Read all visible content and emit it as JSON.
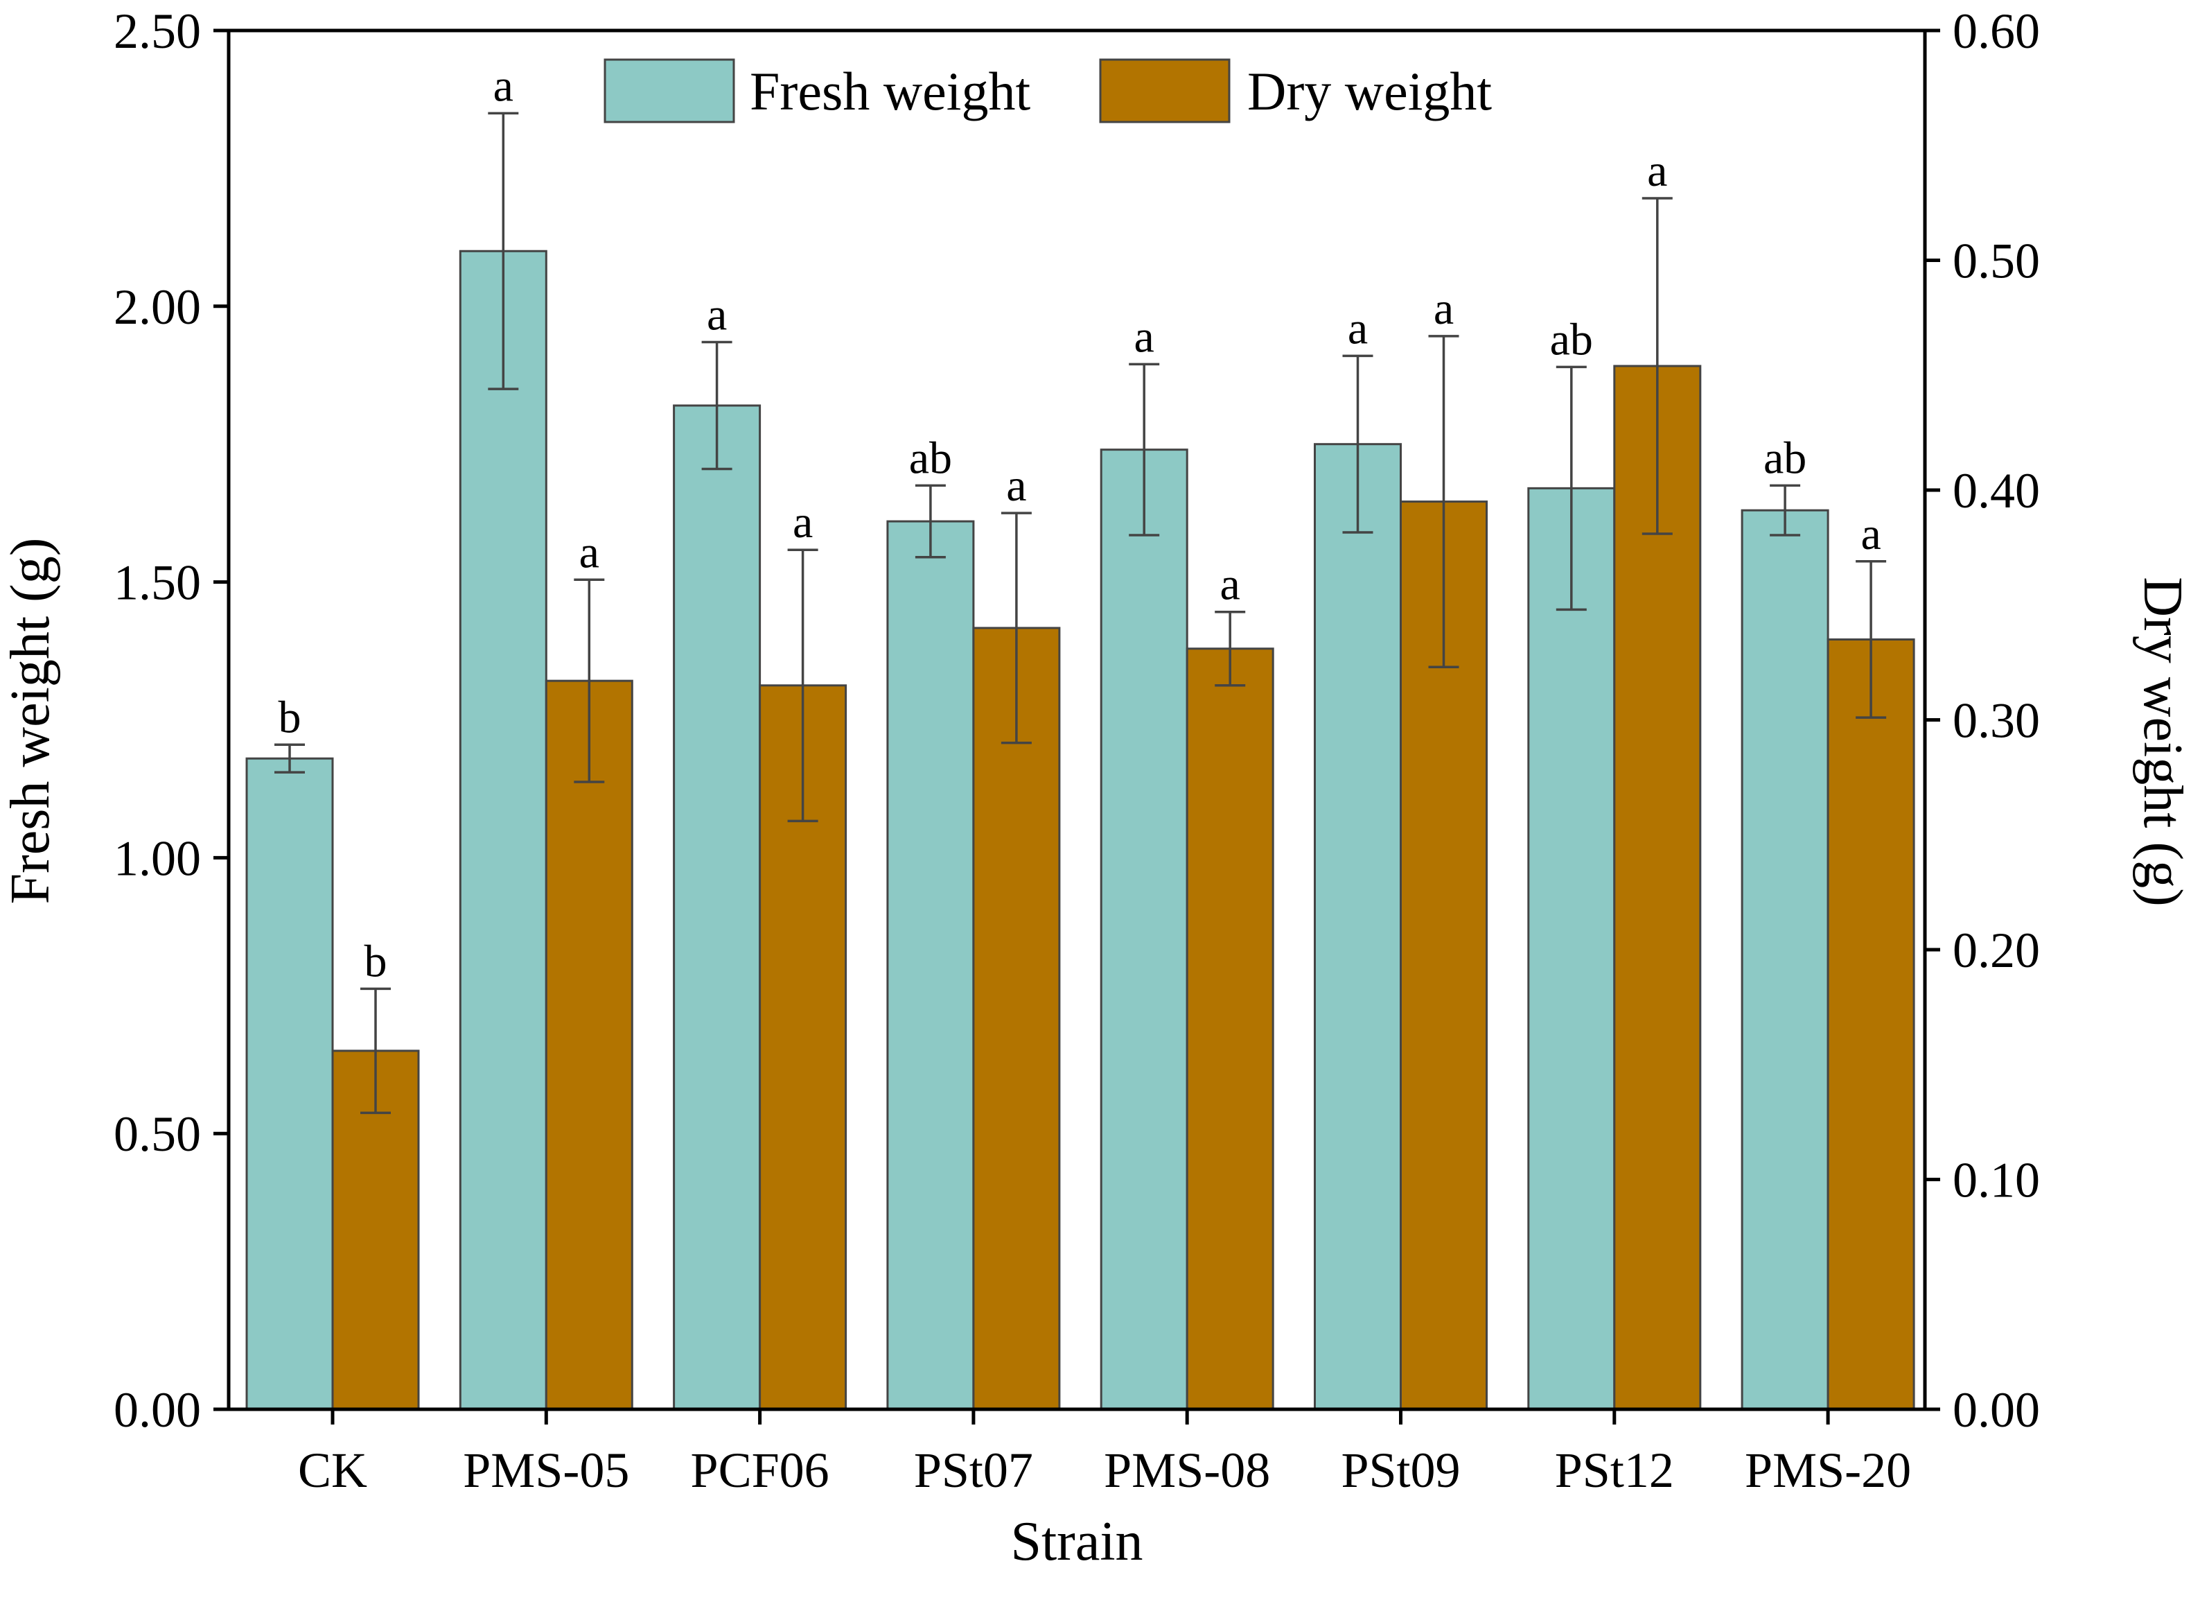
{
  "chart_data": {
    "type": "bar",
    "title": "",
    "xlabel": "Strain",
    "ylabel": "Fresh weight (g)",
    "y2label": "Dry weight (g)",
    "categories": [
      "CK",
      "PMS-05",
      "PCF06",
      "PSt07",
      "PMS-08",
      "PSt09",
      "PSt12",
      "PMS-20"
    ],
    "ylim": [
      0,
      2.5
    ],
    "y2lim": [
      0,
      0.6
    ],
    "yticks": [
      "0.00",
      "0.50",
      "1.00",
      "1.50",
      "2.00",
      "2.50"
    ],
    "y2ticks": [
      "0.00",
      "0.10",
      "0.20",
      "0.30",
      "0.40",
      "0.50",
      "0.60"
    ],
    "legend_position": "top-center",
    "series": [
      {
        "name": "Fresh weight",
        "axis": "left",
        "color": "#8dc9c5",
        "values": [
          1.18,
          2.1,
          1.82,
          1.61,
          1.74,
          1.75,
          1.67,
          1.63
        ],
        "errors": [
          0.025,
          0.25,
          0.115,
          0.065,
          0.155,
          0.16,
          0.22,
          0.045
        ],
        "significance": [
          "b",
          "a",
          "a",
          "ab",
          "a",
          "a",
          "ab",
          "ab"
        ]
      },
      {
        "name": "Dry weight",
        "axis": "right",
        "color": "#b27400",
        "values": [
          0.156,
          0.317,
          0.315,
          0.34,
          0.331,
          0.395,
          0.454,
          0.335
        ],
        "errors": [
          0.027,
          0.044,
          0.059,
          0.05,
          0.016,
          0.072,
          0.073,
          0.034
        ],
        "significance": [
          "b",
          "a",
          "a",
          "a",
          "a",
          "a",
          "a",
          "a"
        ]
      }
    ]
  }
}
